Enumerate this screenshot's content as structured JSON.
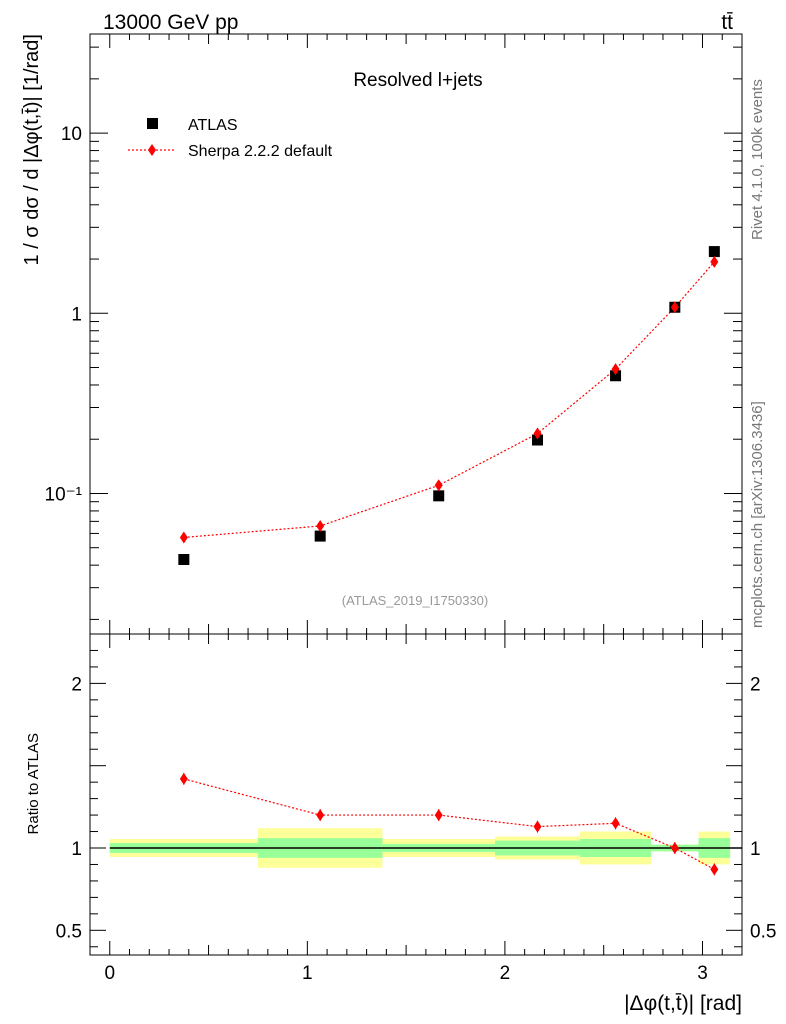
{
  "chart_data": {
    "type": "scatter",
    "header_left": "13000 GeV pp",
    "header_right": "tt̄",
    "title": "Resolved l+jets",
    "analysis_tag": "(ATLAS_2019_I1750330)",
    "side_text_top": "Rivet 4.1.0,  100k events",
    "side_text_bottom": "mcplots.cern.ch [arXiv:1306.3436]",
    "xlabel": "|Δφ(t,t̄)| [rad]",
    "ylabel_main": "1 / σ dσ / d |Δφ(t,t̄)| [1/rad]",
    "ylabel_ratio": "Ratio to ATLAS",
    "xlim": [
      -0.1,
      3.2
    ],
    "ylim_main_log10": [
      -1.78,
      1.55
    ],
    "ylim_ratio": [
      0.35,
      2.3
    ],
    "x_ticks": [
      {
        "value": 0,
        "label": "0"
      },
      {
        "value": 1,
        "label": "1"
      },
      {
        "value": 2,
        "label": "2"
      },
      {
        "value": 3,
        "label": "3"
      }
    ],
    "y_ticks_main": [
      {
        "value": 0.1,
        "label": "10⁻¹"
      },
      {
        "value": 1,
        "label": "1"
      },
      {
        "value": 10,
        "label": "10"
      }
    ],
    "y_ticks_ratio": [
      {
        "value": 0.5,
        "label": "0.5"
      },
      {
        "value": 1,
        "label": "1"
      },
      {
        "value": 2,
        "label": "2"
      }
    ],
    "bin_edges": [
      0,
      0.75,
      1.38,
      1.95,
      2.38,
      2.74,
      2.98,
      3.14
    ],
    "series": [
      {
        "name": "ATLAS",
        "marker": "square",
        "color": "#000000",
        "x": [
          0.375,
          1.065,
          1.665,
          2.165,
          2.56,
          2.86,
          3.06
        ],
        "values": [
          0.043,
          0.058,
          0.097,
          0.198,
          0.45,
          1.08,
          2.2
        ]
      },
      {
        "name": "Sherpa 2.2.2 default",
        "marker": "diamond",
        "color": "#ff0000",
        "x": [
          0.375,
          1.065,
          1.665,
          2.165,
          2.56,
          2.86,
          3.06
        ],
        "values": [
          0.057,
          0.066,
          0.111,
          0.215,
          0.49,
          1.08,
          1.93
        ],
        "ratio": [
          1.42,
          1.2,
          1.2,
          1.13,
          1.15,
          1.0,
          0.87
        ]
      }
    ],
    "uncertainty_bands": {
      "green_color": "#99ff99",
      "yellow_color": "#ffff99",
      "green_halfwidth": [
        0.03,
        0.06,
        0.025,
        0.045,
        0.055,
        0.02,
        0.06
      ],
      "yellow_halfwidth": [
        0.055,
        0.12,
        0.055,
        0.07,
        0.1,
        0.02,
        0.1
      ]
    }
  }
}
